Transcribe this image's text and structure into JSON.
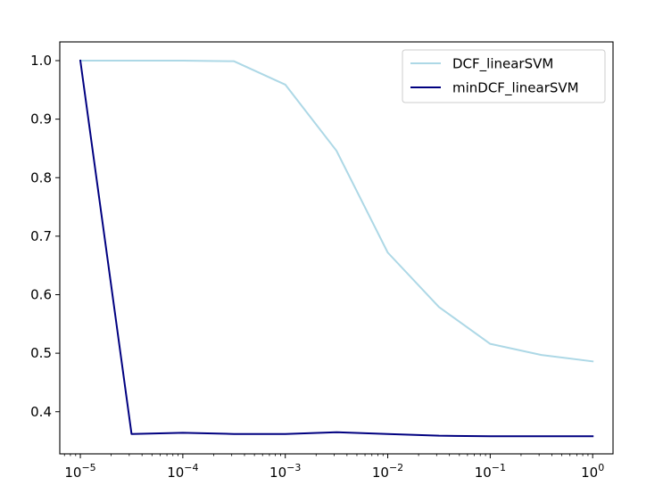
{
  "chart_data": {
    "type": "line",
    "xscale": "log",
    "x": [
      1e-05,
      3.16e-05,
      0.0001,
      0.000316,
      0.001,
      0.00316,
      0.01,
      0.0316,
      0.1,
      0.316,
      1
    ],
    "xlim": [
      6.3e-06,
      1.58
    ],
    "ylim": [
      0.328,
      1.032
    ],
    "xticks": [
      {
        "value": 1e-05,
        "base": "10",
        "exp": "−5"
      },
      {
        "value": 0.0001,
        "base": "10",
        "exp": "−4"
      },
      {
        "value": 0.001,
        "base": "10",
        "exp": "−3"
      },
      {
        "value": 0.01,
        "base": "10",
        "exp": "−2"
      },
      {
        "value": 0.1,
        "base": "10",
        "exp": "−1"
      },
      {
        "value": 1,
        "base": "10",
        "exp": "0"
      }
    ],
    "yticks": [
      {
        "value": 0.4,
        "label": "0.4"
      },
      {
        "value": 0.5,
        "label": "0.5"
      },
      {
        "value": 0.6,
        "label": "0.6"
      },
      {
        "value": 0.7,
        "label": "0.7"
      },
      {
        "value": 0.8,
        "label": "0.8"
      },
      {
        "value": 0.9,
        "label": "0.9"
      },
      {
        "value": 1.0,
        "label": "1.0"
      }
    ],
    "series": [
      {
        "name": "DCF_linearSVM",
        "color": "#add8e6",
        "values": [
          1.0,
          1.0,
          1.0,
          0.999,
          0.959,
          0.846,
          0.672,
          0.579,
          0.516,
          0.497,
          0.486
        ]
      },
      {
        "name": "minDCF_linearSVM",
        "color": "#000080",
        "values": [
          1.0,
          0.362,
          0.364,
          0.362,
          0.362,
          0.365,
          0.362,
          0.359,
          0.358,
          0.358,
          0.358
        ]
      }
    ],
    "grid": false,
    "legend_position": "top-right"
  }
}
